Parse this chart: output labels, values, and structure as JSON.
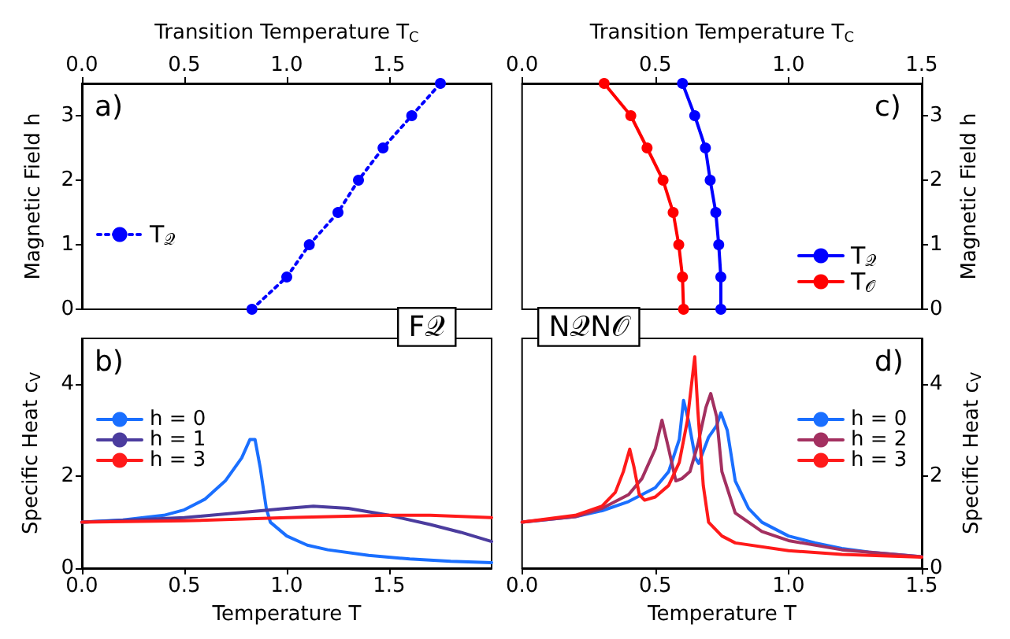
{
  "chart_data": [
    {
      "type": "line",
      "xlabel": "Transition Temperature T$_{C}$",
      "ylabel": "Magnetic Field h",
      "xlim": [
        0,
        2
      ],
      "xticks": [
        {
          "value": 0,
          "label": "0.0"
        },
        {
          "value": 0.5,
          "label": "0.5"
        },
        {
          "value": 1,
          "label": "1.0"
        },
        {
          "value": 1.5,
          "label": "1.5"
        }
      ],
      "ylim": [
        0,
        3.5
      ],
      "yticks": [
        0,
        1,
        2,
        3
      ],
      "marker": "circle",
      "line_style": "dotted",
      "legend": "center left",
      "grid": false,
      "annotations": [
        "a)"
      ],
      "series": [
        {
          "name": "T$_{𝒬}$",
          "color": "#0000ff",
          "x": [
            0.83,
            1.0,
            1.11,
            1.25,
            1.35,
            1.47,
            1.61,
            1.75
          ],
          "values": [
            0,
            0.5,
            1,
            1.5,
            2,
            2.5,
            3,
            3.5
          ]
        }
      ]
    },
    {
      "type": "line",
      "xlabel": "Transition Temperature T$_{C}$",
      "ylabel": "Magnetic Field h",
      "xlim": [
        0,
        1.5
      ],
      "xticks": [
        {
          "value": 0,
          "label": "0.0"
        },
        {
          "value": 0.5,
          "label": "0.5"
        },
        {
          "value": 1,
          "label": "1.0"
        },
        {
          "value": 1.5,
          "label": "1.5"
        }
      ],
      "ylim": [
        0,
        3.5
      ],
      "yticks": [
        0,
        1,
        2,
        3
      ],
      "marker": "circle",
      "line_style": "solid",
      "legend": "bottom right",
      "grid": false,
      "annotations": [
        "c)"
      ],
      "series": [
        {
          "name": "T$_{𝒬}$",
          "color": "#0000ff",
          "x": [
            0.746,
            0.746,
            0.738,
            0.727,
            0.706,
            0.688,
            0.648,
            0.602
          ],
          "values": [
            0,
            0.5,
            1,
            1.5,
            2,
            2.5,
            3,
            3.5
          ]
        },
        {
          "name": "T$_{𝒪}$",
          "color": "#ff0000",
          "x": [
            0.606,
            0.602,
            0.588,
            0.567,
            0.529,
            0.469,
            0.408,
            0.308
          ],
          "values": [
            0,
            0.5,
            1,
            1.5,
            2,
            2.5,
            3,
            3.5
          ]
        }
      ]
    },
    {
      "type": "line",
      "xlabel": "Temperature T",
      "ylabel": "Specific Heat c$_{V}$",
      "xlim": [
        0,
        2
      ],
      "xticks": [
        {
          "value": 0,
          "label": "0.0"
        },
        {
          "value": 0.5,
          "label": "0.5"
        },
        {
          "value": 1,
          "label": "1.0"
        },
        {
          "value": 1.5,
          "label": "1.5"
        }
      ],
      "ylim": [
        0,
        5
      ],
      "yticks": [
        0,
        2,
        4
      ],
      "marker": "none",
      "line_style": "solid",
      "legend": "top left",
      "grid": false,
      "annotations": [
        "b)",
        "F𝒬"
      ],
      "series": [
        {
          "name": "h = 0",
          "color": "#1a6fff",
          "x": [
            0,
            0.2,
            0.4,
            0.5,
            0.6,
            0.7,
            0.78,
            0.82,
            0.845,
            0.87,
            0.9,
            0.92,
            1.0,
            1.1,
            1.2,
            1.4,
            1.6,
            1.8,
            2.0
          ],
          "values": [
            1.0,
            1.05,
            1.15,
            1.27,
            1.5,
            1.9,
            2.4,
            2.8,
            2.8,
            2.2,
            1.3,
            1.0,
            0.7,
            0.5,
            0.4,
            0.28,
            0.2,
            0.15,
            0.12
          ]
        },
        {
          "name": "h = 1",
          "color": "#4b3c9e",
          "x": [
            0,
            0.5,
            0.8,
            1.0,
            1.13,
            1.3,
            1.5,
            1.7,
            1.85,
            2.0
          ],
          "values": [
            1.0,
            1.1,
            1.22,
            1.3,
            1.35,
            1.3,
            1.15,
            0.95,
            0.78,
            0.58
          ]
        },
        {
          "name": "h = 3",
          "color": "#ff1a1a",
          "x": [
            0,
            0.5,
            1.0,
            1.5,
            1.7,
            2.0
          ],
          "values": [
            1.0,
            1.03,
            1.1,
            1.15,
            1.15,
            1.1
          ]
        }
      ]
    },
    {
      "type": "line",
      "xlabel": "Temperature T",
      "ylabel": "Specific Heat c$_{V}$",
      "xlim": [
        0,
        1.5
      ],
      "xticks": [
        {
          "value": 0,
          "label": "0.0"
        },
        {
          "value": 0.5,
          "label": "0.5"
        },
        {
          "value": 1,
          "label": "1.0"
        },
        {
          "value": 1.5,
          "label": "1.5"
        }
      ],
      "ylim": [
        0,
        5
      ],
      "yticks": [
        0,
        2,
        4
      ],
      "marker": "none",
      "line_style": "solid",
      "legend": "top right",
      "grid": false,
      "annotations": [
        "d)",
        "N𝒬N𝒪"
      ],
      "series": [
        {
          "name": "h = 0",
          "color": "#1a6fff",
          "x": [
            0,
            0.2,
            0.3,
            0.4,
            0.5,
            0.55,
            0.59,
            0.606,
            0.625,
            0.65,
            0.663,
            0.7,
            0.73,
            0.746,
            0.77,
            0.8,
            0.85,
            0.9,
            1.0,
            1.1,
            1.2,
            1.3,
            1.5
          ],
          "values": [
            1.0,
            1.12,
            1.25,
            1.45,
            1.75,
            2.1,
            2.8,
            3.65,
            3.2,
            2.4,
            2.28,
            2.85,
            3.1,
            3.38,
            3.0,
            1.9,
            1.3,
            1.0,
            0.7,
            0.55,
            0.43,
            0.35,
            0.25
          ]
        },
        {
          "name": "h = 2",
          "color": "#a33060",
          "x": [
            0,
            0.2,
            0.3,
            0.4,
            0.45,
            0.5,
            0.525,
            0.55,
            0.577,
            0.6,
            0.63,
            0.66,
            0.69,
            0.708,
            0.73,
            0.75,
            0.8,
            0.9,
            1.0,
            1.2,
            1.5
          ],
          "values": [
            1.0,
            1.12,
            1.3,
            1.6,
            1.95,
            2.6,
            3.22,
            2.6,
            1.9,
            1.95,
            2.1,
            2.7,
            3.5,
            3.8,
            3.3,
            2.1,
            1.2,
            0.8,
            0.6,
            0.4,
            0.25
          ]
        },
        {
          "name": "h = 3",
          "color": "#ff1a1a",
          "x": [
            0,
            0.2,
            0.3,
            0.35,
            0.38,
            0.404,
            0.42,
            0.44,
            0.46,
            0.5,
            0.55,
            0.59,
            0.62,
            0.648,
            0.66,
            0.68,
            0.7,
            0.75,
            0.8,
            1.0,
            1.2,
            1.5
          ],
          "values": [
            1.0,
            1.15,
            1.35,
            1.65,
            2.1,
            2.59,
            2.2,
            1.6,
            1.48,
            1.55,
            1.8,
            2.3,
            3.2,
            4.6,
            3.4,
            1.8,
            1.0,
            0.7,
            0.55,
            0.38,
            0.3,
            0.24
          ]
        }
      ]
    }
  ]
}
